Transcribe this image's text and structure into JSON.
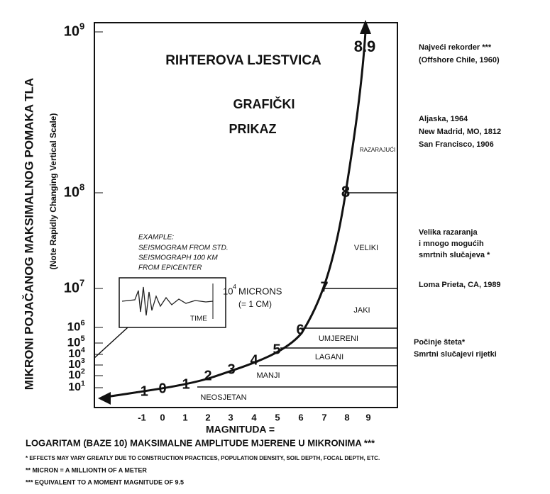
{
  "header": {
    "title": "RIHTEROVA LJESTVICA",
    "subtitle": [
      "GRAFIČKI",
      "PRIKAZ"
    ]
  },
  "y_axis": {
    "label": "MIKRONI POJAČANOG MAKSIMALNOG POMAKA TLA",
    "note": "(Note Rapidly Changing Vertical Scale)",
    "ticks": [
      {
        "base": "10",
        "exponent": "9"
      },
      {
        "base": "10",
        "exponent": "8"
      },
      {
        "base": "10",
        "exponent": "7"
      },
      {
        "base": "10",
        "exponent": "6"
      },
      {
        "base": "10",
        "exponent": "5"
      },
      {
        "base": "10",
        "exponent": "4"
      },
      {
        "base": "10",
        "exponent": "3"
      },
      {
        "base": "10",
        "exponent": "2"
      },
      {
        "base": "10",
        "exponent": "1"
      }
    ]
  },
  "x_axis": {
    "ticks": [
      "-1",
      "0",
      "1",
      "2",
      "3",
      "4",
      "5",
      "6",
      "7",
      "8",
      "9"
    ],
    "label": "MAGNITUDA =",
    "definition": "LOGARITAM (BAZE 10) MAKSIMALNE AMPLITUDE MJERENE U MIKRONIMA ***"
  },
  "curve_labels": [
    "-1",
    "0",
    "1",
    "2",
    "3",
    "4",
    "5",
    "6",
    "7",
    "8",
    "8.9"
  ],
  "zones": [
    "RAZARAJUĆI",
    "VELIKI",
    "JAKI",
    "UMJERENI",
    "LAGANI",
    "MANJI",
    "NEOSJETAN"
  ],
  "inset": {
    "lines": [
      "EXAMPLE:",
      "SEISMOGRAM FROM STD.",
      "SEISMOGRAPH 100 KM",
      "FROM EPICENTER"
    ],
    "amplitude_base": "10",
    "amplitude_exponent": "4",
    "amplitude_unit": "MICRONS",
    "amplitude_equiv": "(= 1 CM)",
    "time": "TIME"
  },
  "annotations": [
    [
      "Najveći rekorder ***",
      "(Offshore Chile, 1960)"
    ],
    [
      "Aljaska, 1964",
      "New Madrid, MO, 1812",
      "San Francisco, 1906"
    ],
    [
      "Velika razaranja",
      "i mnogo mogućih",
      "smrtnih slučajeva *"
    ],
    [
      "Loma Prieta, CA, 1989"
    ],
    [
      "Počinje šteta*",
      "Smrtni slučajevi rijetki"
    ]
  ],
  "footnotes": [
    "* EFFECTS MAY VARY GREATLY DUE TO CONSTRUCTION PRACTICES, POPULATION DENSITY, SOIL DEPTH, FOCAL DEPTH, ETC.",
    "** MICRON = A MILLIONTH OF A METER",
    "*** EQUIVALENT TO A MOMENT MAGNITUDE OF 9.5"
  ]
}
